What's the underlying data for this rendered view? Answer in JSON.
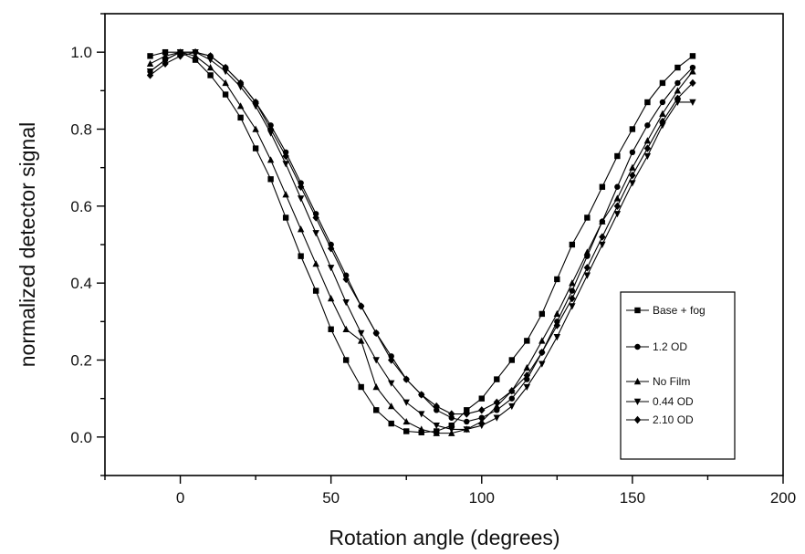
{
  "chart_data": {
    "type": "line",
    "title": "",
    "xlabel": "Rotation angle (degrees)",
    "ylabel": "normalized detector signal",
    "xlim": [
      -25,
      200
    ],
    "ylim": [
      -0.1,
      1.1
    ],
    "xticks": [
      0,
      50,
      100,
      150,
      200
    ],
    "yticks": [
      0.0,
      0.2,
      0.4,
      0.6,
      0.8,
      1.0
    ],
    "grid": false,
    "legend_position": "right",
    "series": [
      {
        "name": "Base + fog",
        "marker": "square",
        "points": [
          [
            -10,
            0.99
          ],
          [
            -5,
            1.0
          ],
          [
            0,
            1.0
          ],
          [
            5,
            0.98
          ],
          [
            10,
            0.94
          ],
          [
            15,
            0.89
          ],
          [
            20,
            0.83
          ],
          [
            25,
            0.75
          ],
          [
            30,
            0.67
          ],
          [
            35,
            0.57
          ],
          [
            40,
            0.47
          ],
          [
            45,
            0.38
          ],
          [
            50,
            0.28
          ],
          [
            55,
            0.2
          ],
          [
            60,
            0.13
          ],
          [
            65,
            0.07
          ],
          [
            70,
            0.035
          ],
          [
            75,
            0.015
          ],
          [
            80,
            0.012
          ],
          [
            85,
            0.015
          ],
          [
            90,
            0.03
          ],
          [
            95,
            0.07
          ],
          [
            100,
            0.1
          ],
          [
            105,
            0.15
          ],
          [
            110,
            0.2
          ],
          [
            115,
            0.25
          ],
          [
            120,
            0.32
          ],
          [
            125,
            0.41
          ],
          [
            130,
            0.5
          ],
          [
            135,
            0.57
          ],
          [
            140,
            0.65
          ],
          [
            145,
            0.73
          ],
          [
            150,
            0.8
          ],
          [
            155,
            0.87
          ],
          [
            160,
            0.92
          ],
          [
            165,
            0.96
          ],
          [
            170,
            0.99
          ]
        ]
      },
      {
        "name": "1.2 OD",
        "marker": "circle",
        "points": [
          [
            -10,
            0.95
          ],
          [
            -5,
            0.98
          ],
          [
            0,
            1.0
          ],
          [
            5,
            1.0
          ],
          [
            10,
            0.99
          ],
          [
            15,
            0.96
          ],
          [
            20,
            0.92
          ],
          [
            25,
            0.87
          ],
          [
            30,
            0.81
          ],
          [
            35,
            0.74
          ],
          [
            40,
            0.66
          ],
          [
            45,
            0.58
          ],
          [
            50,
            0.5
          ],
          [
            55,
            0.42
          ],
          [
            60,
            0.34
          ],
          [
            65,
            0.27
          ],
          [
            70,
            0.21
          ],
          [
            75,
            0.15
          ],
          [
            80,
            0.11
          ],
          [
            85,
            0.07
          ],
          [
            90,
            0.05
          ],
          [
            95,
            0.04
          ],
          [
            100,
            0.05
          ],
          [
            105,
            0.07
          ],
          [
            110,
            0.1
          ],
          [
            115,
            0.15
          ],
          [
            120,
            0.22
          ],
          [
            125,
            0.3
          ],
          [
            130,
            0.38
          ],
          [
            135,
            0.47
          ],
          [
            140,
            0.56
          ],
          [
            145,
            0.65
          ],
          [
            150,
            0.74
          ],
          [
            155,
            0.81
          ],
          [
            160,
            0.87
          ],
          [
            165,
            0.92
          ],
          [
            170,
            0.96
          ]
        ]
      },
      {
        "name": "No Film",
        "marker": "triangle-up",
        "points": [
          [
            -10,
            0.97
          ],
          [
            -5,
            0.99
          ],
          [
            0,
            1.0
          ],
          [
            5,
            0.99
          ],
          [
            10,
            0.96
          ],
          [
            15,
            0.92
          ],
          [
            20,
            0.86
          ],
          [
            25,
            0.8
          ],
          [
            30,
            0.72
          ],
          [
            35,
            0.63
          ],
          [
            40,
            0.54
          ],
          [
            45,
            0.45
          ],
          [
            50,
            0.36
          ],
          [
            55,
            0.28
          ],
          [
            60,
            0.25
          ],
          [
            65,
            0.13
          ],
          [
            70,
            0.08
          ],
          [
            75,
            0.04
          ],
          [
            80,
            0.02
          ],
          [
            85,
            0.01
          ],
          [
            90,
            0.01
          ],
          [
            95,
            0.02
          ],
          [
            100,
            0.04
          ],
          [
            105,
            0.08
          ],
          [
            110,
            0.12
          ],
          [
            115,
            0.18
          ],
          [
            120,
            0.25
          ],
          [
            125,
            0.32
          ],
          [
            130,
            0.4
          ],
          [
            135,
            0.48
          ],
          [
            140,
            0.56
          ],
          [
            145,
            0.62
          ],
          [
            150,
            0.7
          ],
          [
            155,
            0.77
          ],
          [
            160,
            0.84
          ],
          [
            165,
            0.9
          ],
          [
            170,
            0.95
          ]
        ]
      },
      {
        "name": "0.44 OD",
        "marker": "triangle-down",
        "points": [
          [
            -10,
            0.95
          ],
          [
            -5,
            0.98
          ],
          [
            0,
            1.0
          ],
          [
            5,
            1.0
          ],
          [
            10,
            0.98
          ],
          [
            15,
            0.95
          ],
          [
            20,
            0.91
          ],
          [
            25,
            0.86
          ],
          [
            30,
            0.79
          ],
          [
            35,
            0.71
          ],
          [
            40,
            0.62
          ],
          [
            45,
            0.53
          ],
          [
            50,
            0.44
          ],
          [
            55,
            0.35
          ],
          [
            60,
            0.27
          ],
          [
            65,
            0.2
          ],
          [
            70,
            0.14
          ],
          [
            75,
            0.09
          ],
          [
            80,
            0.06
          ],
          [
            85,
            0.03
          ],
          [
            90,
            0.02
          ],
          [
            95,
            0.02
          ],
          [
            100,
            0.03
          ],
          [
            105,
            0.05
          ],
          [
            110,
            0.08
          ],
          [
            115,
            0.13
          ],
          [
            120,
            0.19
          ],
          [
            125,
            0.26
          ],
          [
            130,
            0.34
          ],
          [
            135,
            0.42
          ],
          [
            140,
            0.5
          ],
          [
            145,
            0.58
          ],
          [
            150,
            0.66
          ],
          [
            155,
            0.73
          ],
          [
            160,
            0.81
          ],
          [
            165,
            0.87
          ],
          [
            170,
            0.87
          ]
        ]
      },
      {
        "name": "2.10 OD",
        "marker": "diamond",
        "points": [
          [
            -10,
            0.94
          ],
          [
            -5,
            0.97
          ],
          [
            0,
            0.99
          ],
          [
            5,
            1.0
          ],
          [
            10,
            0.99
          ],
          [
            15,
            0.96
          ],
          [
            20,
            0.92
          ],
          [
            25,
            0.87
          ],
          [
            30,
            0.8
          ],
          [
            35,
            0.73
          ],
          [
            40,
            0.65
          ],
          [
            45,
            0.57
          ],
          [
            50,
            0.49
          ],
          [
            55,
            0.41
          ],
          [
            60,
            0.34
          ],
          [
            65,
            0.27
          ],
          [
            70,
            0.2
          ],
          [
            75,
            0.15
          ],
          [
            80,
            0.11
          ],
          [
            85,
            0.08
          ],
          [
            90,
            0.06
          ],
          [
            95,
            0.06
          ],
          [
            100,
            0.07
          ],
          [
            105,
            0.09
          ],
          [
            110,
            0.12
          ],
          [
            115,
            0.16
          ],
          [
            120,
            0.22
          ],
          [
            125,
            0.29
          ],
          [
            130,
            0.36
          ],
          [
            135,
            0.44
          ],
          [
            140,
            0.52
          ],
          [
            145,
            0.6
          ],
          [
            150,
            0.68
          ],
          [
            155,
            0.75
          ],
          [
            160,
            0.82
          ],
          [
            165,
            0.88
          ],
          [
            170,
            0.92
          ]
        ]
      }
    ]
  }
}
